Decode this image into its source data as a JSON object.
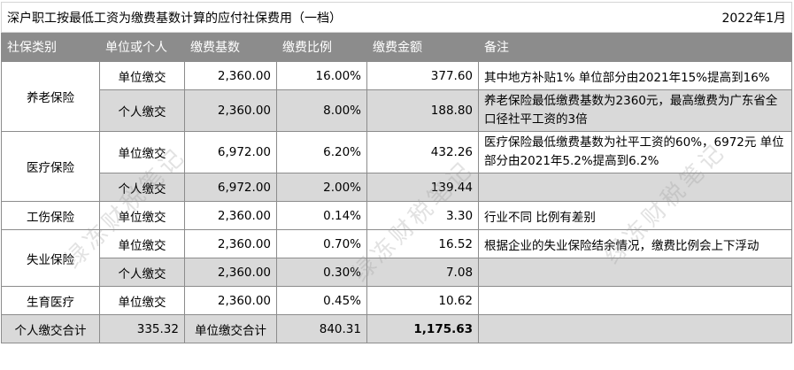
{
  "title": "深户职工按最低工资为缴费基数计算的应付社保费用（一档）",
  "date": "2022年1月",
  "headers": [
    "社保类别",
    "单位或个人",
    "缴费基数",
    "缴费比例",
    "缴费金额",
    "备注"
  ],
  "rows": {
    "pension_unit": {
      "category": "养老保险",
      "who": "单位缴交",
      "base": "2,360.00",
      "rate": "16.00%",
      "amount": "377.60",
      "note": "其中地方补贴1% 单位部分由2021年15%提高到16%"
    },
    "pension_person": {
      "who": "个人缴交",
      "base": "2,360.00",
      "rate": "8.00%",
      "amount": "188.80",
      "note": "养老保险最低缴费基数为2360元，最高缴费为广东省全口径社平工资的3倍"
    },
    "medical_unit": {
      "category": "医疗保险",
      "who": "单位缴交",
      "base": "6,972.00",
      "rate": "6.20%",
      "amount": "432.26",
      "note": "医疗保险最低缴费基数为社平工资的60%，6972元 单位部分由2021年5.2%提高到6.2%"
    },
    "medical_person": {
      "who": "个人缴交",
      "base": "6,972.00",
      "rate": "2.00%",
      "amount": "139.44",
      "note": ""
    },
    "injury_unit": {
      "category": "工伤保险",
      "who": "单位缴交",
      "base": "2,360.00",
      "rate": "0.14%",
      "amount": "3.30",
      "note": "行业不同 比例有差别"
    },
    "unemp_unit": {
      "category": "失业保险",
      "who": "单位缴交",
      "base": "2,360.00",
      "rate": "0.70%",
      "amount": "16.52",
      "note": "根据企业的失业保险结余情况，缴费比例会上下浮动"
    },
    "unemp_person": {
      "who": "个人缴交",
      "base": "2,360.00",
      "rate": "0.30%",
      "amount": "7.08",
      "note": ""
    },
    "birth_unit": {
      "category": "生育医疗",
      "who": "单位缴交",
      "base": "2,360.00",
      "rate": "0.45%",
      "amount": "10.62",
      "note": ""
    }
  },
  "totals": {
    "personal_label": "个人缴交合计",
    "personal_value": "335.32",
    "unit_label": "单位缴交合计",
    "unit_value": "840.31",
    "grand_total": "1,175.63"
  },
  "watermark": "绿冻财税笔记",
  "colors": {
    "header_bg": "#8c8c8c",
    "gray_row": "#d9d9d9"
  }
}
